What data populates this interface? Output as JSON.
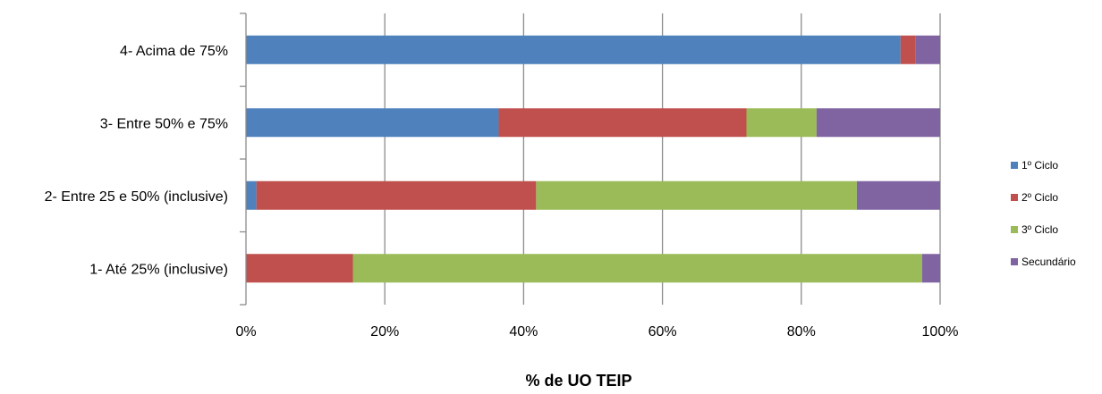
{
  "chart_data": {
    "type": "bar",
    "orientation": "horizontal",
    "stacked": "percent",
    "categories": [
      "4- Acima de 75%",
      "3- Entre 50% e 75%",
      "2- Entre 25 e 50% (inclusive)",
      "1- Até 25% (inclusive)"
    ],
    "series": [
      {
        "name": "1º Ciclo",
        "color": "#4F81BD",
        "values": [
          94.3,
          36.4,
          1.5,
          0
        ]
      },
      {
        "name": "2º Ciclo",
        "color": "#C0504D",
        "values": [
          2.2,
          35.7,
          40.3,
          15.4
        ]
      },
      {
        "name": "3º Ciclo",
        "color": "#9BBB59",
        "values": [
          0,
          10.1,
          46.2,
          82.0
        ]
      },
      {
        "name": "Secundário",
        "color": "#8064A2",
        "values": [
          3.5,
          17.8,
          12.0,
          2.6
        ]
      }
    ],
    "xticks": [
      "0%",
      "20%",
      "40%",
      "60%",
      "80%",
      "100%"
    ],
    "xlim": [
      0,
      100
    ],
    "xlabel": "% de UO TEIP",
    "grid": true,
    "legend": "right"
  }
}
